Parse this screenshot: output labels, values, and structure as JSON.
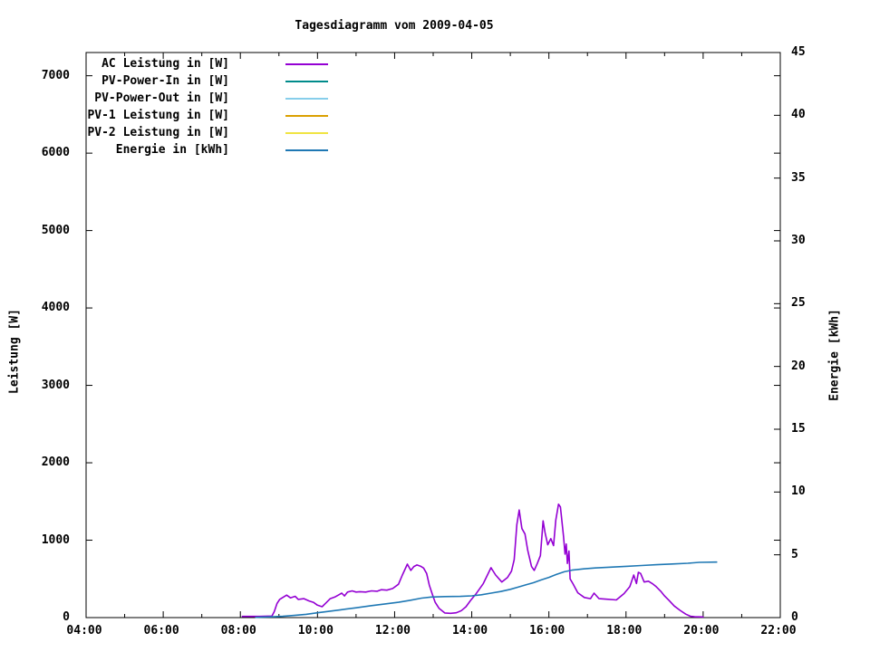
{
  "chart_data": {
    "type": "line",
    "title": "Tagesdiagramm vom 2009-04-05",
    "xlabel": "",
    "grid": false,
    "background_color": "#ffffff",
    "axis_color": "#000000",
    "x_axis": {
      "unit": "time",
      "start_hour": 4,
      "end_hour": 22,
      "tick_hours": [
        4,
        6,
        8,
        10,
        12,
        14,
        16,
        18,
        20,
        22
      ],
      "tick_labels": [
        "04:00",
        "06:00",
        "08:00",
        "10:00",
        "12:00",
        "14:00",
        "16:00",
        "18:00",
        "20:00",
        "22:00"
      ],
      "minor_tick_hours": [
        5,
        7,
        9,
        11,
        13,
        15,
        17,
        19,
        21
      ]
    },
    "y_axis_left": {
      "label": "Leistung [W]",
      "min": 0,
      "max": 7300,
      "tick_values": [
        0,
        1000,
        2000,
        3000,
        4000,
        5000,
        6000,
        7000
      ],
      "tick_labels": [
        "0",
        "1000",
        "2000",
        "3000",
        "4000",
        "5000",
        "6000",
        "7000"
      ]
    },
    "y_axis_right": {
      "label": "Energie [kWh]",
      "min": 0,
      "max": 45,
      "tick_values": [
        0,
        5,
        10,
        15,
        20,
        25,
        30,
        35,
        40,
        45
      ],
      "tick_labels": [
        "0",
        "5",
        "10",
        "15",
        "20",
        "25",
        "30",
        "35",
        "40",
        "45"
      ]
    },
    "legend": {
      "position": "top-left-inside",
      "entries": [
        {
          "label": "AC Leistung in [W]",
          "color": "#9400d3"
        },
        {
          "label": "PV-Power-In in [W]",
          "color": "#008b8b"
        },
        {
          "label": "PV-Power-Out in [W]",
          "color": "#87ceeb"
        },
        {
          "label": "PV-1 Leistung in [W]",
          "color": "#daa000"
        },
        {
          "label": "PV-2 Leistung in [W]",
          "color": "#f0e442"
        },
        {
          "label": "Energie in [kWh]",
          "color": "#1f78b4"
        }
      ]
    },
    "series": [
      {
        "id": "ac-leistung",
        "name": "AC Leistung in [W]",
        "color": "#9400d3",
        "axis": "left",
        "x_hours": [
          8.05,
          8.5,
          8.82,
          8.88,
          8.95,
          9.02,
          9.1,
          9.2,
          9.3,
          9.42,
          9.5,
          9.65,
          9.78,
          9.9,
          10.0,
          10.12,
          10.22,
          10.33,
          10.45,
          10.57,
          10.63,
          10.7,
          10.78,
          10.9,
          11.0,
          11.1,
          11.25,
          11.4,
          11.55,
          11.65,
          11.8,
          11.95,
          12.1,
          12.2,
          12.33,
          12.42,
          12.5,
          12.58,
          12.67,
          12.75,
          12.83,
          12.9,
          12.98,
          13.05,
          13.15,
          13.3,
          13.45,
          13.6,
          13.73,
          13.85,
          13.97,
          14.1,
          14.3,
          14.5,
          14.62,
          14.78,
          14.93,
          15.03,
          15.1,
          15.17,
          15.23,
          15.3,
          15.38,
          15.45,
          15.55,
          15.62,
          15.7,
          15.78,
          15.85,
          15.9,
          15.97,
          16.05,
          16.12,
          16.18,
          16.25,
          16.3,
          16.38,
          16.42,
          16.45,
          16.48,
          16.52,
          16.55,
          16.62,
          16.75,
          16.92,
          17.08,
          17.17,
          17.3,
          17.5,
          17.75,
          17.95,
          18.1,
          18.2,
          18.27,
          18.32,
          18.38,
          18.47,
          18.58,
          18.68,
          18.78,
          18.9,
          19.0,
          19.12,
          19.25,
          19.4,
          19.55,
          19.67,
          19.78,
          20.0
        ],
        "values": [
          15,
          15,
          20,
          80,
          180,
          235,
          260,
          290,
          255,
          275,
          235,
          245,
          215,
          195,
          160,
          140,
          190,
          245,
          265,
          300,
          316,
          280,
          330,
          345,
          330,
          335,
          330,
          345,
          340,
          360,
          355,
          375,
          430,
          550,
          690,
          610,
          660,
          680,
          665,
          640,
          570,
          420,
          300,
          200,
          120,
          60,
          55,
          62,
          90,
          140,
          222,
          300,
          440,
          645,
          550,
          460,
          520,
          600,
          750,
          1200,
          1390,
          1150,
          1080,
          870,
          660,
          610,
          700,
          800,
          1250,
          1100,
          940,
          1020,
          930,
          1260,
          1465,
          1430,
          1050,
          820,
          950,
          700,
          860,
          500,
          440,
          320,
          260,
          245,
          316,
          245,
          238,
          228,
          310,
          400,
          550,
          440,
          585,
          570,
          460,
          470,
          440,
          400,
          340,
          280,
          220,
          150,
          94,
          45,
          18,
          10,
          8
        ]
      },
      {
        "id": "pv-power-in",
        "name": "PV-Power-In in [W]",
        "color": "#008b8b",
        "axis": "left",
        "x_hours": [],
        "values": []
      },
      {
        "id": "pv-power-out",
        "name": "PV-Power-Out in [W]",
        "color": "#87ceeb",
        "axis": "left",
        "x_hours": [],
        "values": []
      },
      {
        "id": "pv1-leistung",
        "name": "PV-1 Leistung in [W]",
        "color": "#daa000",
        "axis": "left",
        "x_hours": [],
        "values": []
      },
      {
        "id": "pv2-leistung",
        "name": "PV-2 Leistung in [W]",
        "color": "#f0e442",
        "axis": "left",
        "x_hours": [],
        "values": []
      },
      {
        "id": "energie",
        "name": "Energie in [kWh]",
        "color": "#1f78b4",
        "axis": "right",
        "x_hours": [
          8.4,
          8.8,
          9.1,
          9.4,
          9.7,
          10.0,
          10.3,
          10.6,
          11.0,
          11.4,
          11.8,
          12.1,
          12.4,
          12.7,
          12.95,
          13.3,
          13.7,
          14.0,
          14.25,
          14.5,
          14.75,
          15.0,
          15.2,
          15.4,
          15.6,
          15.8,
          16.0,
          16.2,
          16.4,
          16.6,
          16.9,
          17.2,
          17.6,
          18.0,
          18.4,
          18.8,
          19.2,
          19.6,
          19.9,
          20.35
        ],
        "values": [
          0.02,
          0.06,
          0.1,
          0.17,
          0.26,
          0.38,
          0.5,
          0.62,
          0.78,
          0.95,
          1.1,
          1.22,
          1.38,
          1.55,
          1.64,
          1.67,
          1.69,
          1.73,
          1.82,
          1.95,
          2.08,
          2.25,
          2.42,
          2.6,
          2.78,
          3.0,
          3.2,
          3.45,
          3.65,
          3.78,
          3.88,
          3.95,
          4.02,
          4.08,
          4.15,
          4.21,
          4.27,
          4.33,
          4.4,
          4.42
        ]
      }
    ]
  }
}
